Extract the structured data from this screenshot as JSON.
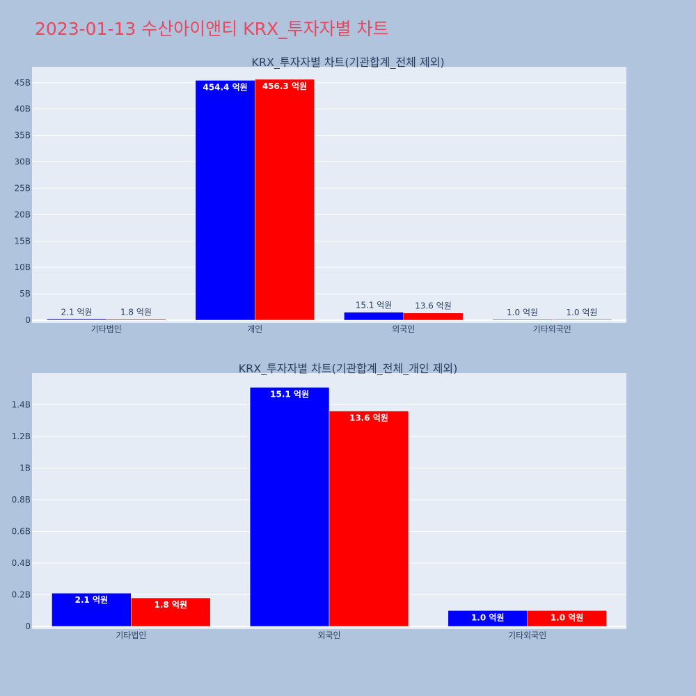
{
  "title": "2023-01-13 수산아이앤티 KRX_투자자별 차트",
  "colors": {
    "background": "#b0c4de",
    "plot_bg": "#e5ecf6",
    "title": "#e8475f",
    "buy": "#0000ff",
    "sell": "#ff0000"
  },
  "chart_data": [
    {
      "type": "bar",
      "title": "KRX_투자자별 차트(기관합계_전체 제외)",
      "categories": [
        "기타법인",
        "개인",
        "외국인",
        "기타외국인"
      ],
      "ylim": [
        0,
        48
      ],
      "yticks": [
        0,
        5,
        10,
        15,
        20,
        25,
        30,
        35,
        40,
        45
      ],
      "ytick_labels": [
        "0",
        "5B",
        "10B",
        "15B",
        "20B",
        "25B",
        "30B",
        "35B",
        "40B",
        "45B"
      ],
      "grid": true,
      "series": [
        {
          "color": "#0000ff",
          "values": [
            0.21,
            45.44,
            1.51,
            0.1
          ],
          "labels": [
            "2.1 억원",
            "454.4 억원",
            "15.1 억원",
            "1.0 억원"
          ]
        },
        {
          "color": "#ff0000",
          "values": [
            0.18,
            45.63,
            1.36,
            0.1
          ],
          "labels": [
            "1.8 억원",
            "456.3 억원",
            "13.6 억원",
            "1.0 억원"
          ]
        }
      ]
    },
    {
      "type": "bar",
      "title": "KRX_투자자별 차트(기관합계_전체_개인 제외)",
      "categories": [
        "기타법인",
        "외국인",
        "기타외국인"
      ],
      "ylim": [
        0,
        1.6
      ],
      "yticks": [
        0,
        0.2,
        0.4,
        0.6,
        0.8,
        1.0,
        1.2,
        1.4
      ],
      "ytick_labels": [
        "0",
        "0.2B",
        "0.4B",
        "0.6B",
        "0.8B",
        "1B",
        "1.2B",
        "1.4B"
      ],
      "grid": true,
      "series": [
        {
          "color": "#0000ff",
          "values": [
            0.21,
            1.51,
            0.1
          ],
          "labels": [
            "2.1 억원",
            "15.1 억원",
            "1.0 억원"
          ]
        },
        {
          "color": "#ff0000",
          "values": [
            0.18,
            1.36,
            0.1
          ],
          "labels": [
            "1.8 억원",
            "13.6 억원",
            "1.0 억원"
          ]
        }
      ]
    }
  ]
}
